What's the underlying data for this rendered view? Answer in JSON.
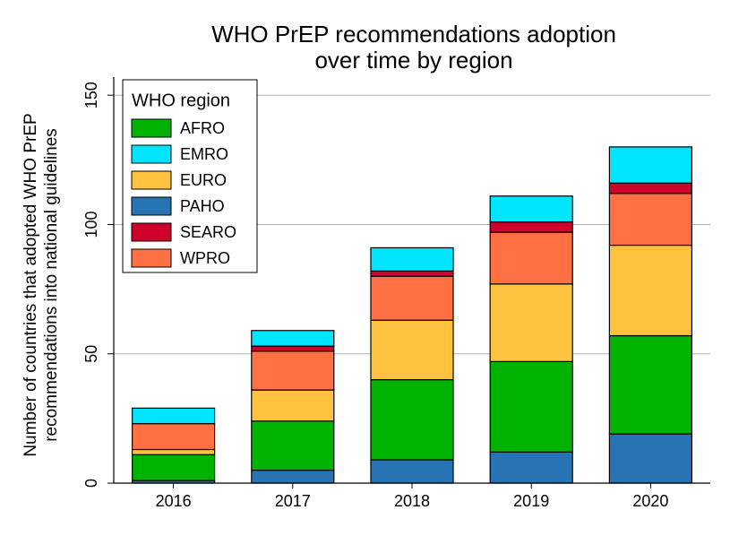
{
  "chart_data": {
    "type": "stacked_bar",
    "title": [
      "WHO PrEP recommendations adoption",
      "over time by region"
    ],
    "y_label": [
      "Number of countries that adopted WHO PrEP",
      "recommendations into national guidelines"
    ],
    "legend_title": "WHO region",
    "categories": [
      "2016",
      "2017",
      "2018",
      "2019",
      "2020"
    ],
    "series": [
      {
        "name": "AFRO",
        "color": "#00b300",
        "values": [
          10,
          19,
          31,
          35,
          38
        ]
      },
      {
        "name": "EMRO",
        "color": "#00e5ff",
        "values": [
          6,
          6,
          9,
          10,
          14
        ]
      },
      {
        "name": "EURO",
        "color": "#ffc33f",
        "values": [
          2,
          12,
          23,
          30,
          35
        ]
      },
      {
        "name": "PAHO",
        "color": "#2773b4",
        "values": [
          1,
          5,
          9,
          12,
          19
        ]
      },
      {
        "name": "SEARO",
        "color": "#d0002c",
        "values": [
          0,
          2,
          2,
          4,
          4
        ]
      },
      {
        "name": "WPRO",
        "color": "#ff7043",
        "values": [
          10,
          15,
          17,
          20,
          20
        ]
      }
    ],
    "ylim": [
      0,
      157
    ],
    "yticks": [
      0,
      50,
      100,
      150
    ],
    "grid": true,
    "legend": "top-left"
  }
}
